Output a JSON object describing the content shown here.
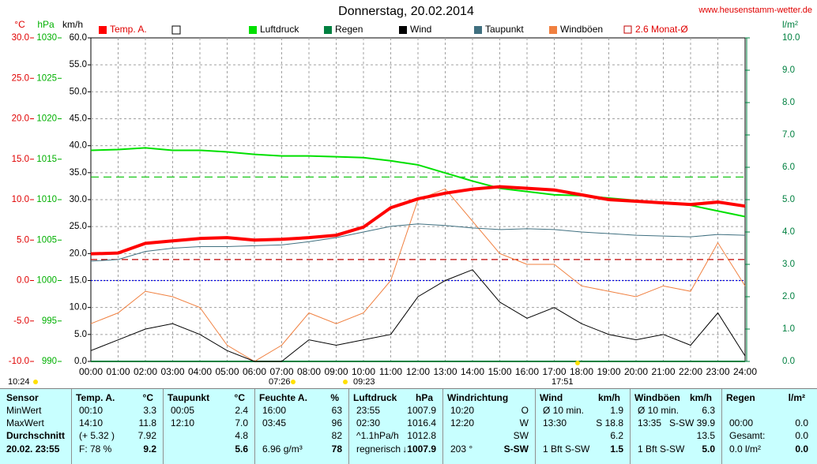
{
  "chart_data": {
    "type": "line",
    "title": "Donnerstag, 20.02.2014",
    "site": "www.heusenstamm-wetter.de",
    "x": [
      "00:00",
      "01:00",
      "02:00",
      "03:00",
      "04:00",
      "05:00",
      "06:00",
      "07:00",
      "08:00",
      "09:00",
      "10:00",
      "11:00",
      "12:00",
      "13:00",
      "14:00",
      "15:00",
      "16:00",
      "17:00",
      "18:00",
      "19:00",
      "20:00",
      "21:00",
      "22:00",
      "23:00",
      "24:00"
    ],
    "axes": {
      "temp": {
        "label": "°C",
        "color": "#e00000",
        "lim": [
          -10,
          30
        ],
        "ticks": [
          {
            "value": 30,
            "label": "30.0"
          },
          {
            "value": 25,
            "label": "25.0"
          },
          {
            "value": 20,
            "label": "20.0"
          },
          {
            "value": 15,
            "label": "15.0"
          },
          {
            "value": 10,
            "label": "10.0"
          },
          {
            "value": 5,
            "label": "5.0"
          },
          {
            "value": 0,
            "label": "0.0"
          },
          {
            "value": -5,
            "label": "-5.0"
          },
          {
            "value": -10,
            "label": "-10.0"
          }
        ]
      },
      "hpa": {
        "label": "hPa",
        "color": "#00b000",
        "lim": [
          990,
          1030
        ],
        "ticks": [
          1030,
          1025,
          1020,
          1015,
          1010,
          1005,
          1000,
          995,
          990
        ]
      },
      "kmh": {
        "label": "km/h",
        "color": "#000000",
        "lim": [
          0,
          60
        ],
        "ticks": [
          {
            "value": 60,
            "label": "60.0"
          },
          {
            "value": 55,
            "label": "55.0"
          },
          {
            "value": 50,
            "label": "50.0"
          },
          {
            "value": 45,
            "label": "45.0"
          },
          {
            "value": 40,
            "label": "40.0"
          },
          {
            "value": 35,
            "label": "35.0"
          },
          {
            "value": 30,
            "label": "30.0"
          },
          {
            "value": 25,
            "label": "25.0"
          },
          {
            "value": 20,
            "label": "20.0"
          },
          {
            "value": 15,
            "label": "15.0"
          },
          {
            "value": 10,
            "label": "10.0"
          },
          {
            "value": 5,
            "label": "5.0"
          },
          {
            "value": 0,
            "label": "0.0"
          }
        ]
      },
      "rain": {
        "label": "l/m²",
        "color": "#008040",
        "lim": [
          0,
          10
        ],
        "ticks": [
          {
            "value": 0,
            "label": "0.0"
          },
          {
            "value": 1,
            "label": "1.0"
          },
          {
            "value": 2,
            "label": "2.0"
          },
          {
            "value": 3,
            "label": "3.0"
          },
          {
            "value": 4,
            "label": "4.0"
          },
          {
            "value": 5,
            "label": "5.0"
          },
          {
            "value": 6,
            "label": "6.0"
          },
          {
            "value": 7,
            "label": "7.0"
          },
          {
            "value": 8,
            "label": "8.0"
          },
          {
            "value": 9,
            "label": "9.0"
          },
          {
            "value": 10,
            "label": "10.0"
          }
        ]
      }
    },
    "series": [
      {
        "name": "Temp. A.",
        "color": "#ff0000",
        "axis": "temp",
        "width": 4,
        "values": [
          3.3,
          3.4,
          4.6,
          4.9,
          5.2,
          5.3,
          5.0,
          5.1,
          5.3,
          5.6,
          6.6,
          9.0,
          10.1,
          10.8,
          11.3,
          11.6,
          11.4,
          11.2,
          10.6,
          10.0,
          9.8,
          9.6,
          9.4,
          9.7,
          9.2
        ]
      },
      {
        "name": "Luftdruck",
        "color": "#00e000",
        "axis": "hpa",
        "width": 2,
        "values": [
          1016.1,
          1016.2,
          1016.4,
          1016.1,
          1016.1,
          1015.9,
          1015.6,
          1015.4,
          1015.4,
          1015.3,
          1015.2,
          1014.8,
          1014.3,
          1013.3,
          1012.3,
          1011.4,
          1011.0,
          1010.6,
          1010.5,
          1010.2,
          1009.9,
          1009.6,
          1009.3,
          1008.6,
          1007.9
        ]
      },
      {
        "name": "Regen",
        "color": "#008040",
        "axis": "rain",
        "width": 2,
        "values": [
          0,
          0,
          0,
          0,
          0,
          0,
          0,
          0,
          0,
          0,
          0,
          0,
          0,
          0,
          0,
          0,
          0,
          0,
          0,
          0,
          0,
          0,
          0,
          0,
          0
        ]
      },
      {
        "name": "Wind",
        "color": "#000000",
        "axis": "kmh",
        "width": 1,
        "values": [
          2,
          4,
          6,
          7,
          5,
          2,
          0,
          0,
          4,
          3,
          4,
          5,
          12,
          15,
          17,
          11,
          8,
          10,
          7,
          5,
          4,
          5,
          3,
          9,
          1
        ]
      },
      {
        "name": "Taupunkt",
        "color": "#407080",
        "axis": "temp",
        "width": 1,
        "values": [
          2.4,
          2.6,
          3.6,
          4.0,
          4.2,
          4.2,
          4.3,
          4.4,
          4.8,
          5.3,
          6.0,
          6.7,
          7.0,
          6.8,
          6.5,
          6.3,
          6.4,
          6.3,
          6.0,
          5.8,
          5.6,
          5.5,
          5.4,
          5.7,
          5.6
        ]
      },
      {
        "name": "Windböen",
        "color": "#f08040",
        "axis": "kmh",
        "width": 1,
        "values": [
          7,
          9,
          13,
          12,
          10,
          3,
          0,
          3,
          9,
          7,
          9,
          15,
          30,
          32,
          26,
          20,
          18,
          18,
          14,
          13,
          12,
          14,
          13,
          22,
          14
        ]
      }
    ],
    "month_avg": {
      "label": "2.6 Monat-Ø",
      "value": 2.6,
      "axis": "temp",
      "color": "#c00000"
    },
    "pressure_avg": {
      "value": 1012.8,
      "axis": "hpa",
      "color": "#00c000"
    },
    "freezing": {
      "value": 0,
      "axis": "temp",
      "color": "#0000e0"
    },
    "annotations": [
      "10:24",
      "07:26",
      "09:23",
      "17:51"
    ]
  },
  "table": {
    "sensor": [
      "Sensor",
      "MinWert",
      "MaxWert",
      "Durchschnitt",
      "20.02. 23:55"
    ],
    "groups": [
      {
        "header": [
          "Temp. A.",
          "°C"
        ],
        "rows": [
          [
            "00:10",
            "3.3"
          ],
          [
            "14:10",
            "11.8"
          ],
          [
            "(+ 5.32 )",
            "7.92"
          ],
          [
            "F: 78 %",
            "9.2"
          ]
        ]
      },
      {
        "header": [
          "Taupunkt",
          "°C"
        ],
        "rows": [
          [
            "00:05",
            "2.4"
          ],
          [
            "12:10",
            "7.0"
          ],
          [
            null,
            "4.8"
          ],
          [
            null,
            "5.6"
          ]
        ]
      },
      {
        "header": [
          "Feuchte A.",
          "%"
        ],
        "rows": [
          [
            "16:00",
            "63"
          ],
          [
            "03:45",
            "96"
          ],
          [
            null,
            "82"
          ],
          [
            "6.96 g/m³",
            "78"
          ]
        ]
      },
      {
        "header": [
          "Luftdruck",
          "hPa"
        ],
        "rows": [
          [
            "23:55",
            "1007.9"
          ],
          [
            "02:30",
            "1016.4"
          ],
          [
            "^1.1hPa/h",
            "1012.8"
          ],
          [
            "regnerisch",
            "↓1007.9"
          ]
        ]
      },
      {
        "header": [
          "Windrichtung",
          null
        ],
        "rows": [
          [
            "10:20",
            "O"
          ],
          [
            "12:20",
            "W"
          ],
          [
            null,
            "SW"
          ],
          [
            "203 °",
            "S-SW"
          ]
        ]
      },
      {
        "header": [
          "Wind",
          "km/h"
        ],
        "rows": [
          [
            "Ø 10 min.",
            "1.9"
          ],
          [
            "13:30",
            "S 18.8"
          ],
          [
            null,
            "6.2"
          ],
          [
            "1 Bft S-SW",
            "1.5"
          ]
        ]
      },
      {
        "header": [
          "Windböen",
          "km/h"
        ],
        "rows": [
          [
            "Ø 10 min.",
            "6.3"
          ],
          [
            "13:35",
            "S-SW 39.9"
          ],
          [
            null,
            "13.5"
          ],
          [
            "1 Bft S-SW",
            "5.0"
          ]
        ]
      },
      {
        "header": [
          "Regen",
          "l/m²"
        ],
        "rows": [
          [
            null,
            null
          ],
          [
            "00:00",
            "0.0"
          ],
          [
            "Gesamt:",
            "0.0"
          ],
          [
            "0.0 l/m²",
            "0.0"
          ]
        ]
      }
    ]
  }
}
